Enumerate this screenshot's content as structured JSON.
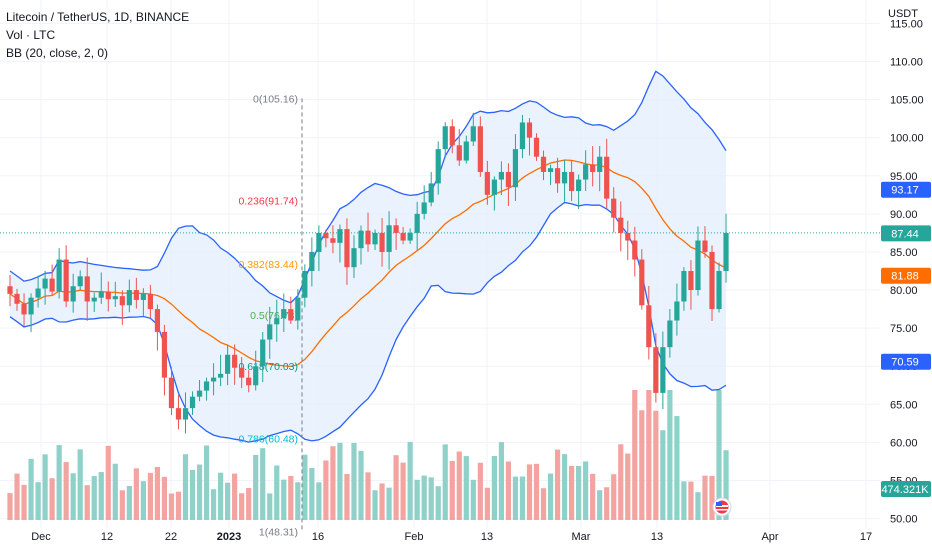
{
  "legend": {
    "title": "Litecoin / TetherUS, 1D, BINANCE",
    "volume": "Vol · LTC",
    "bb": "BB (20, close, 2, 0)"
  },
  "axis": {
    "currency": "USDT"
  },
  "colors": {
    "up": "#26a69a",
    "down": "#ef5350",
    "vol_up": "#8fd0c9",
    "vol_down": "#f3a4a1",
    "bb_band": "#2962ff",
    "bb_basis": "#ff6d00",
    "bb_fill": "#e3effd",
    "grid": "#f0f3fa",
    "price_line": "#26a69a"
  },
  "chart_data": {
    "type": "candlestick",
    "ylim": [
      48.5,
      116.5
    ],
    "y_ticks": [
      "115.00",
      "110.00",
      "105.00",
      "100.00",
      "95.00",
      "90.00",
      "85.00",
      "80.00",
      "75.00",
      "70.00",
      "65.00",
      "60.00",
      "55.00",
      "50.00"
    ],
    "x_labels": [
      "Dec",
      "12",
      "22",
      "2023",
      "16",
      "Feb",
      "13",
      "Mar",
      "13",
      "Apr",
      "17"
    ],
    "price_tags": [
      {
        "value": "93.17",
        "type": "bb_upper"
      },
      {
        "value": "87.44",
        "type": "last_price"
      },
      {
        "value": "81.88",
        "type": "bb_basis"
      },
      {
        "value": "70.59",
        "type": "bb_lower"
      },
      {
        "value": "474.321K",
        "type": "volume"
      }
    ],
    "closes": [
      79.5,
      78.2,
      76.8,
      79.0,
      80.2,
      81.5,
      79.8,
      84.0,
      78.5,
      80.5,
      81.8,
      78.5,
      79.0,
      79.8,
      78.8,
      79.2,
      78.0,
      80.0,
      78.7,
      79.5,
      77.5,
      74.5,
      68.5,
      64.5,
      63.0,
      64.5,
      66.0,
      66.8,
      68.0,
      68.5,
      69.0,
      71.5,
      69.8,
      68.5,
      67.5,
      70.0,
      73.5,
      75.5,
      76.3,
      77.5,
      76.0,
      79.0,
      82.5,
      85.0,
      87.5,
      86.8,
      86.2,
      88.0,
      83.0,
      85.5,
      87.8,
      86.0,
      87.5,
      85.0,
      88.5,
      87.5,
      86.5,
      87.5,
      90.0,
      91.5,
      94.0,
      98.5,
      101.5,
      99.0,
      97.0,
      99.5,
      101.5,
      95.5,
      92.5,
      94.5,
      95.5,
      93.5,
      98.5,
      102.0,
      100.0,
      97.5,
      95.5,
      96.0,
      94.0,
      95.5,
      93.0,
      94.5,
      96.5,
      95.5,
      97.5,
      92.0,
      89.5,
      87.5,
      86.5,
      84.0,
      78.0,
      72.5,
      66.5,
      72.5,
      76.0,
      78.5,
      82.5,
      80.0,
      86.5,
      85.0,
      77.5,
      82.5,
      87.5
    ],
    "x_ranges": {
      "candles": [
        0,
        102
      ]
    },
    "fib_levels": [
      {
        "label": "0(105.16)",
        "value": 105.16,
        "color": "#787b86"
      },
      {
        "label": "0.236(91.74)",
        "value": 91.74,
        "color": "#f23645"
      },
      {
        "label": "0.382(83.44)",
        "value": 83.44,
        "color": "#ff9800"
      },
      {
        "label": "0.5(76.73)",
        "value": 76.73,
        "color": "#4caf50"
      },
      {
        "label": "0.618(70.03)",
        "value": 70.03,
        "color": "#089981"
      },
      {
        "label": "0.786(60.48)",
        "value": 60.48,
        "color": "#00bcd4"
      },
      {
        "label": "1(48.31)",
        "value": 48.31,
        "color": "#787b86"
      }
    ]
  }
}
